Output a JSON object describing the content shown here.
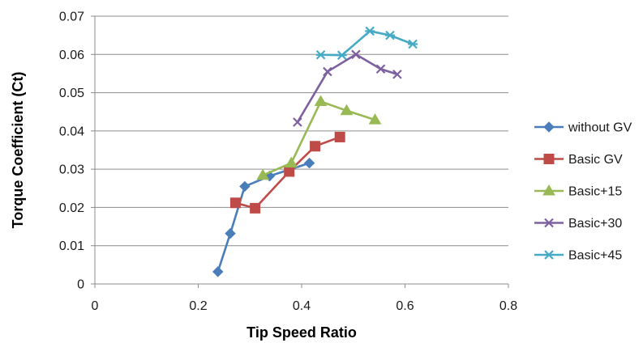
{
  "chart_data": {
    "type": "line",
    "xlabel": "Tip Speed Ratio",
    "ylabel": "Torque Coefficient (Ct)",
    "xlim": [
      0,
      0.8
    ],
    "ylim": [
      0,
      0.07
    ],
    "xticks": [
      0,
      0.2,
      0.4,
      0.6,
      0.8
    ],
    "xtick_labels": [
      "0",
      "0.2",
      "0.4",
      "0.6",
      "0.8"
    ],
    "yticks": [
      0,
      0.01,
      0.02,
      0.03,
      0.04,
      0.05,
      0.06,
      0.07
    ],
    "ytick_labels": [
      "0",
      "0.01",
      "0.02",
      "0.03",
      "0.04",
      "0.05",
      "0.06",
      "0.07"
    ],
    "grid": "horizontal",
    "legend_position": "right",
    "series": [
      {
        "name": "without GV",
        "color": "#4a7ebb",
        "marker": "diamond",
        "x": [
          0.238,
          0.262,
          0.29,
          0.338,
          0.415
        ],
        "y": [
          0.0032,
          0.0132,
          0.0255,
          0.0282,
          0.0316
        ]
      },
      {
        "name": "Basic GV",
        "color": "#be4b48",
        "marker": "square",
        "x": [
          0.272,
          0.31,
          0.376,
          0.426,
          0.474
        ],
        "y": [
          0.0212,
          0.0198,
          0.0294,
          0.036,
          0.0384
        ]
      },
      {
        "name": "Basic+15",
        "color": "#98b954",
        "marker": "triangle",
        "x": [
          0.325,
          0.38,
          0.437,
          0.487,
          0.542
        ],
        "y": [
          0.0284,
          0.0316,
          0.0477,
          0.0453,
          0.0429
        ]
      },
      {
        "name": "Basic+30",
        "color": "#7d60a0",
        "marker": "x",
        "x": [
          0.392,
          0.45,
          0.505,
          0.553,
          0.585
        ],
        "y": [
          0.0423,
          0.0555,
          0.06,
          0.0562,
          0.0548
        ]
      },
      {
        "name": "Basic+45",
        "color": "#46aac5",
        "marker": "star",
        "x": [
          0.437,
          0.478,
          0.532,
          0.571,
          0.615
        ],
        "y": [
          0.0599,
          0.0598,
          0.0661,
          0.065,
          0.0627
        ]
      }
    ]
  }
}
